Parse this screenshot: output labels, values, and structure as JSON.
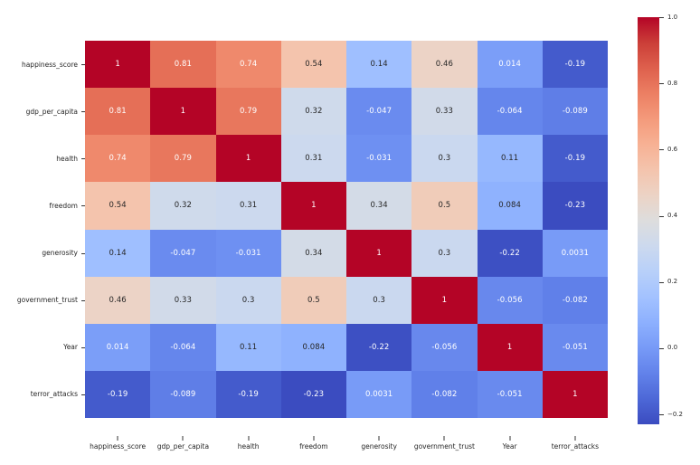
{
  "chart_data": {
    "type": "heatmap",
    "categories": [
      "happiness_score",
      "gdp_per_capita",
      "health",
      "freedom",
      "generosity",
      "government_trust",
      "Year",
      "terror_attacks"
    ],
    "matrix": [
      [
        "1",
        "0.81",
        "0.74",
        "0.54",
        "0.14",
        "0.46",
        "0.014",
        "-0.19"
      ],
      [
        "0.81",
        "1",
        "0.79",
        "0.32",
        "-0.047",
        "0.33",
        "-0.064",
        "-0.089"
      ],
      [
        "0.74",
        "0.79",
        "1",
        "0.31",
        "-0.031",
        "0.3",
        "0.11",
        "-0.19"
      ],
      [
        "0.54",
        "0.32",
        "0.31",
        "1",
        "0.34",
        "0.5",
        "0.084",
        "-0.23"
      ],
      [
        "0.14",
        "-0.047",
        "-0.031",
        "0.34",
        "1",
        "0.3",
        "-0.22",
        "0.0031"
      ],
      [
        "0.46",
        "0.33",
        "0.3",
        "0.5",
        "0.3",
        "1",
        "-0.056",
        "-0.082"
      ],
      [
        "0.014",
        "-0.064",
        "0.11",
        "0.084",
        "-0.22",
        "-0.056",
        "1",
        "-0.051"
      ],
      [
        "-0.19",
        "-0.089",
        "-0.19",
        "-0.23",
        "0.0031",
        "-0.082",
        "-0.051",
        "1"
      ]
    ],
    "colormap": "coolwarm",
    "colormap_stops": [
      "#3B4CC0",
      "#4D68D7",
      "#6282EA",
      "#779AF7",
      "#8DB0FE",
      "#A3C2FF",
      "#B8D0F9",
      "#CCD9EE",
      "#DDDDDD",
      "#ECD3C5",
      "#F4C4AD",
      "#F7B194",
      "#F49A7B",
      "#EC7F63",
      "#DE604D",
      "#CB3E38",
      "#B40426"
    ],
    "vmin": -0.23,
    "vmax": 1.0,
    "colorbar": {
      "tick_labels": [
        "1.0",
        "0.8",
        "0.6",
        "0.4",
        "0.2",
        "0.0",
        "−0.2"
      ],
      "tick_values": [
        1.0,
        0.8,
        0.6,
        0.4,
        0.2,
        0.0,
        -0.2
      ]
    },
    "annotation_color_dark": "#262626",
    "annotation_color_light": "#ffffff",
    "axis_label_color": "#262626",
    "tick_mark_color": "#333333",
    "background_color": "#ffffff"
  }
}
